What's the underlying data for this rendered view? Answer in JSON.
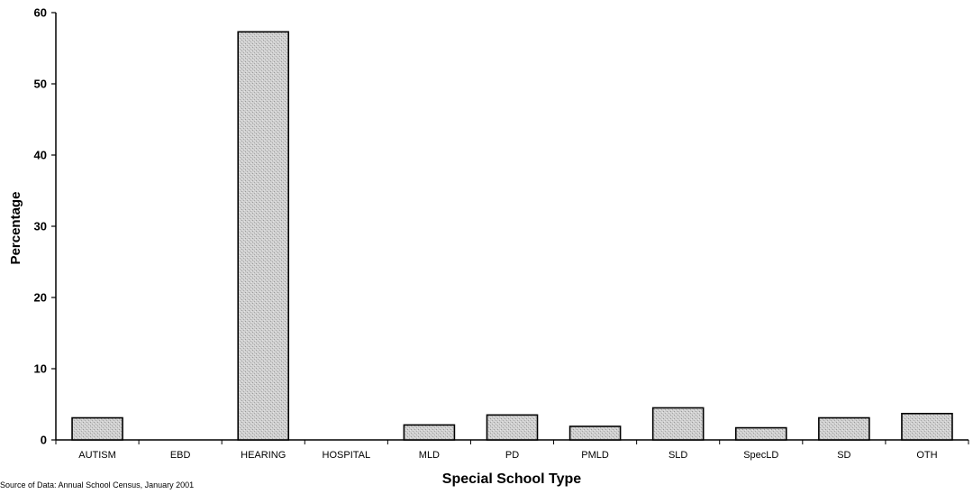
{
  "chart_data": {
    "type": "bar",
    "categories": [
      "AUTISM",
      "EBD",
      "HEARING",
      "HOSPITAL",
      "MLD",
      "PD",
      "PMLD",
      "SLD",
      "SpecLD",
      "SD",
      "OTH"
    ],
    "values": [
      3.1,
      0,
      57.3,
      0,
      2.1,
      3.5,
      1.9,
      4.5,
      1.7,
      3.1,
      3.7
    ],
    "title": "",
    "xlabel": "Special School Type",
    "ylabel": "Percentage",
    "ylim": [
      0,
      60
    ],
    "yticks": [
      "0",
      "10",
      "20",
      "30",
      "40",
      "50",
      "60"
    ],
    "grid": false,
    "legend": "none",
    "bar_color": "#c8c8c8",
    "bar_outline_color": "#000000",
    "source_note": "Source of Data: Annual School Census, January 2001"
  }
}
